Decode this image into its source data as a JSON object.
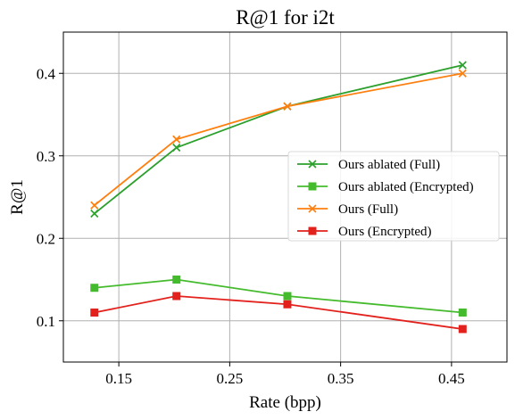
{
  "chart_data": {
    "type": "line",
    "title": "R@1 for i2t",
    "xlabel": "Rate (bpp)",
    "ylabel": "R@1",
    "xlim": [
      0.1,
      0.5
    ],
    "ylim": [
      0.05,
      0.45
    ],
    "xticks": [
      0.15,
      0.25,
      0.35,
      0.45
    ],
    "xtick_labels": [
      "0.15",
      "0.25",
      "0.35",
      "0.45"
    ],
    "yticks": [
      0.1,
      0.2,
      0.3,
      0.4
    ],
    "ytick_labels": [
      "0.1",
      "0.2",
      "0.3",
      "0.4"
    ],
    "grid": true,
    "legend_position": "center-right",
    "series": [
      {
        "name": "Ours ablated (Full)",
        "color": "#2ca02c",
        "marker": "x",
        "x": [
          0.128,
          0.202,
          0.302,
          0.46
        ],
        "y": [
          0.23,
          0.31,
          0.36,
          0.41
        ]
      },
      {
        "name": "Ours ablated (Encrypted)",
        "color": "#44bb2c",
        "marker": "square",
        "x": [
          0.128,
          0.202,
          0.302,
          0.46
        ],
        "y": [
          0.14,
          0.15,
          0.13,
          0.11
        ]
      },
      {
        "name": "Ours (Full)",
        "color": "#ff7f0e",
        "marker": "x",
        "x": [
          0.128,
          0.202,
          0.302,
          0.46
        ],
        "y": [
          0.24,
          0.32,
          0.36,
          0.4
        ]
      },
      {
        "name": "Ours (Encrypted)",
        "color": "#e3211c",
        "marker": "square",
        "x": [
          0.128,
          0.202,
          0.302,
          0.46
        ],
        "y": [
          0.11,
          0.13,
          0.12,
          0.09
        ]
      }
    ]
  }
}
